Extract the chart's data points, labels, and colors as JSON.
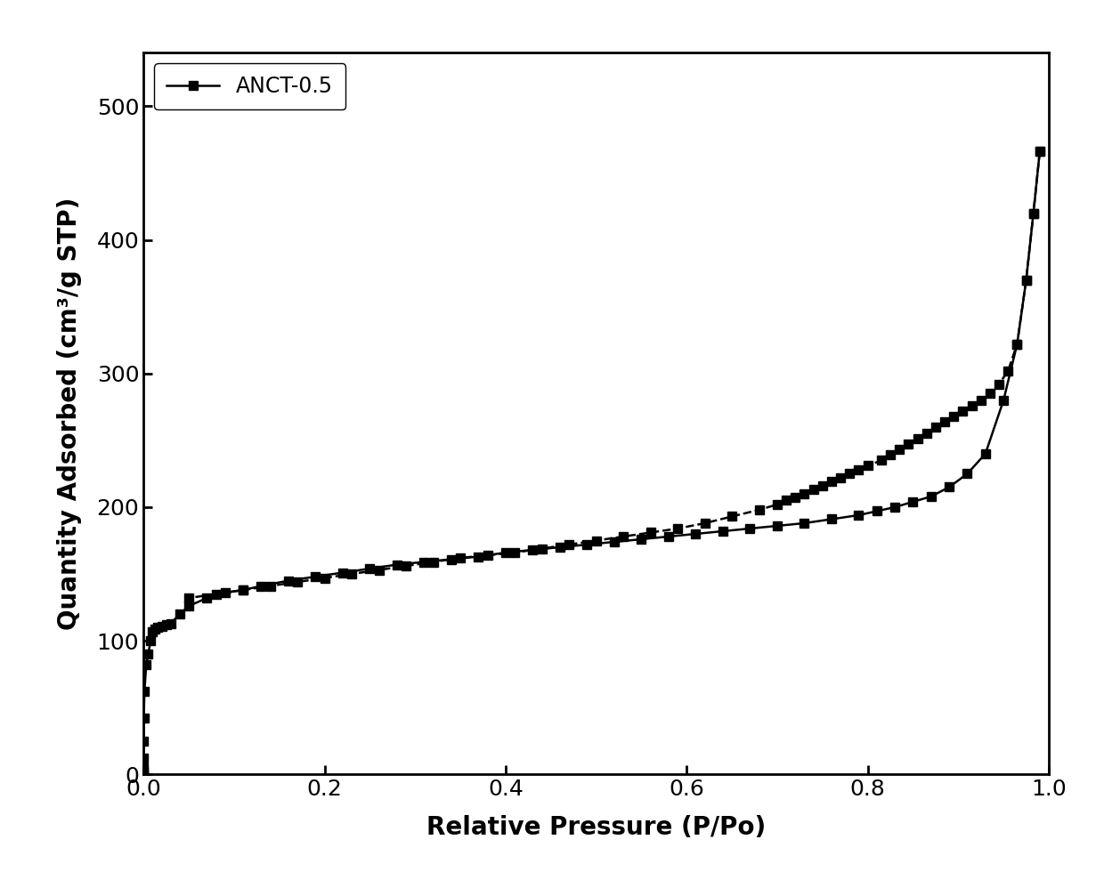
{
  "xlabel": "Relative Pressure (P/Po)",
  "ylabel": "Quantity Adsorbed (cm³/g STP)",
  "legend_label": "ANCT-0.5",
  "xlim": [
    0.0,
    1.0
  ],
  "ylim": [
    0,
    540
  ],
  "yticks": [
    0,
    100,
    200,
    300,
    400,
    500
  ],
  "xticks": [
    0.0,
    0.2,
    0.4,
    0.6,
    0.8,
    1.0
  ],
  "adsorption_x": [
    2e-06,
    5e-06,
    1e-05,
    3e-05,
    0.0001,
    0.0003,
    0.001,
    0.003,
    0.005,
    0.008,
    0.01,
    0.013,
    0.016,
    0.02,
    0.025,
    0.03,
    0.04,
    0.05,
    0.07,
    0.09,
    0.11,
    0.13,
    0.16,
    0.19,
    0.22,
    0.25,
    0.28,
    0.31,
    0.34,
    0.37,
    0.4,
    0.43,
    0.46,
    0.49,
    0.52,
    0.55,
    0.58,
    0.61,
    0.64,
    0.67,
    0.7,
    0.73,
    0.76,
    0.79,
    0.81,
    0.83,
    0.85,
    0.87,
    0.89,
    0.91,
    0.93,
    0.95,
    0.965,
    0.975,
    0.983,
    0.99
  ],
  "adsorption_y": [
    0,
    2,
    5,
    12,
    25,
    42,
    62,
    82,
    90,
    100,
    107,
    109,
    110,
    111,
    112,
    113,
    120,
    126,
    132,
    136,
    138,
    141,
    145,
    148,
    151,
    154,
    157,
    159,
    161,
    163,
    166,
    168,
    170,
    172,
    174,
    176,
    178,
    180,
    182,
    184,
    186,
    188,
    191,
    194,
    197,
    200,
    204,
    208,
    215,
    225,
    240,
    280,
    322,
    370,
    420,
    466
  ],
  "desorption_x": [
    0.99,
    0.983,
    0.975,
    0.965,
    0.955,
    0.945,
    0.935,
    0.925,
    0.915,
    0.905,
    0.895,
    0.885,
    0.875,
    0.865,
    0.855,
    0.845,
    0.835,
    0.825,
    0.815,
    0.8,
    0.79,
    0.78,
    0.77,
    0.76,
    0.75,
    0.74,
    0.73,
    0.72,
    0.71,
    0.7,
    0.68,
    0.65,
    0.62,
    0.59,
    0.56,
    0.53,
    0.5,
    0.47,
    0.44,
    0.41,
    0.38,
    0.35,
    0.32,
    0.29,
    0.26,
    0.23,
    0.2,
    0.17,
    0.14,
    0.11,
    0.08,
    0.05
  ],
  "desorption_y": [
    466,
    420,
    370,
    322,
    302,
    292,
    285,
    280,
    276,
    272,
    268,
    264,
    260,
    255,
    251,
    247,
    243,
    239,
    235,
    231,
    228,
    225,
    222,
    219,
    216,
    213,
    210,
    207,
    205,
    202,
    198,
    193,
    188,
    184,
    181,
    178,
    175,
    172,
    169,
    166,
    164,
    162,
    159,
    156,
    153,
    150,
    147,
    144,
    141,
    138,
    135,
    132
  ],
  "line_color": "#000000",
  "marker": "s",
  "markersize": 7,
  "linewidth": 1.8,
  "background_color": "#ffffff",
  "axis_label_fontsize": 20,
  "tick_fontsize": 18,
  "legend_fontsize": 17
}
